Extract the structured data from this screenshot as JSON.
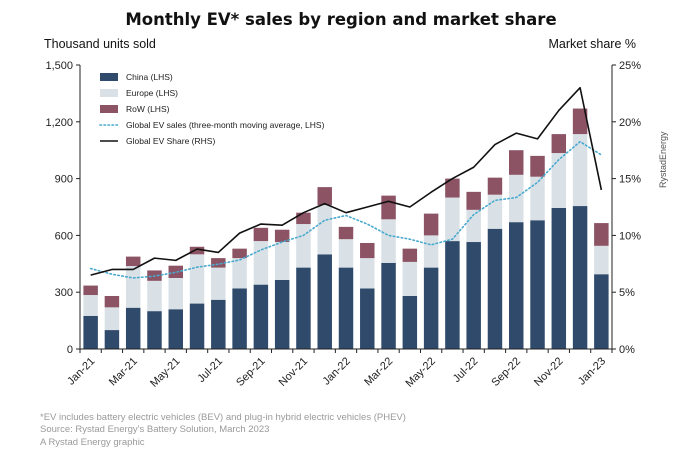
{
  "title": "Monthly EV* sales by region and market share",
  "left_axis_title": "Thousand units sold",
  "right_axis_title": "Market share %",
  "brand": "RystadEnergy",
  "footer": [
    "*EV includes battery electric vehicles (BEV) and plug-in hybrid electric vehicles (PHEV)",
    "Source: Rystad Energy's Battery Solution, March 2023",
    "A Rystad Energy graphic"
  ],
  "colors": {
    "china": "#2f4a6b",
    "europe": "#d9e1e6",
    "row": "#8b5364",
    "moving_avg": "#49a9cf",
    "share": "#111111"
  },
  "chart_data": {
    "type": "bar",
    "stacked": true,
    "categories": [
      "Jan-21",
      "Feb-21",
      "Mar-21",
      "Apr-21",
      "May-21",
      "Jun-21",
      "Jul-21",
      "Aug-21",
      "Sep-21",
      "Oct-21",
      "Nov-21",
      "Dec-21",
      "Jan-22",
      "Feb-22",
      "Mar-22",
      "Apr-22",
      "May-22",
      "Jun-22",
      "Jul-22",
      "Aug-22",
      "Sep-22",
      "Oct-22",
      "Nov-22",
      "Dec-22",
      "Jan-23"
    ],
    "x_tick_labels": [
      "Jan-21",
      "Mar-21",
      "May-21",
      "Jul-21",
      "Sep-21",
      "Nov-21",
      "Jan-22",
      "Mar-22",
      "May-22",
      "Jul-22",
      "Sep-22",
      "Nov-22",
      "Jan-23"
    ],
    "series": [
      {
        "name": "China (LHS)",
        "kind": "bar",
        "values": [
          175,
          100,
          218,
          200,
          210,
          240,
          260,
          320,
          340,
          365,
          430,
          500,
          430,
          320,
          455,
          280,
          430,
          570,
          565,
          635,
          670,
          680,
          745,
          755,
          395
        ]
      },
      {
        "name": "Europe (LHS)",
        "kind": "bar",
        "values": [
          110,
          120,
          220,
          160,
          165,
          260,
          170,
          160,
          230,
          200,
          230,
          260,
          150,
          160,
          230,
          180,
          170,
          230,
          170,
          180,
          250,
          230,
          290,
          380,
          150
        ]
      },
      {
        "name": "RoW (LHS)",
        "kind": "bar",
        "values": [
          50,
          60,
          50,
          55,
          65,
          40,
          50,
          50,
          70,
          65,
          60,
          95,
          65,
          80,
          125,
          70,
          115,
          100,
          95,
          90,
          130,
          110,
          100,
          135,
          120
        ]
      },
      {
        "name": "Global EV sales (three-month moving average, LHS)",
        "kind": "line",
        "axis": "left",
        "values": [
          425,
          395,
          375,
          385,
          405,
          432,
          448,
          470,
          523,
          565,
          600,
          680,
          705,
          660,
          600,
          580,
          550,
          580,
          710,
          785,
          800,
          880,
          1000,
          1095,
          1025
        ]
      },
      {
        "name": "Global EV Share (RHS)",
        "kind": "line",
        "axis": "right",
        "values": [
          6.5,
          7.0,
          7.0,
          8.0,
          7.8,
          8.8,
          8.5,
          10.2,
          11.0,
          10.9,
          12.0,
          12.8,
          12.0,
          12.5,
          13.0,
          12.5,
          13.8,
          15.0,
          16.0,
          18.0,
          19.0,
          18.5,
          21.0,
          23.0,
          14.0
        ]
      }
    ],
    "ylim": [
      0,
      1500
    ],
    "yticks": [
      "0",
      "300",
      "600",
      "900",
      "1,200",
      "1,500"
    ],
    "ylim_right": [
      0,
      25
    ],
    "yticks_right": [
      "0%",
      "5%",
      "10%",
      "15%",
      "20%",
      "25%"
    ],
    "xlabel": "",
    "ylabel": "Thousand units sold",
    "ylabel_right": "Market share %",
    "grid": false,
    "legend_position": "top-left"
  }
}
